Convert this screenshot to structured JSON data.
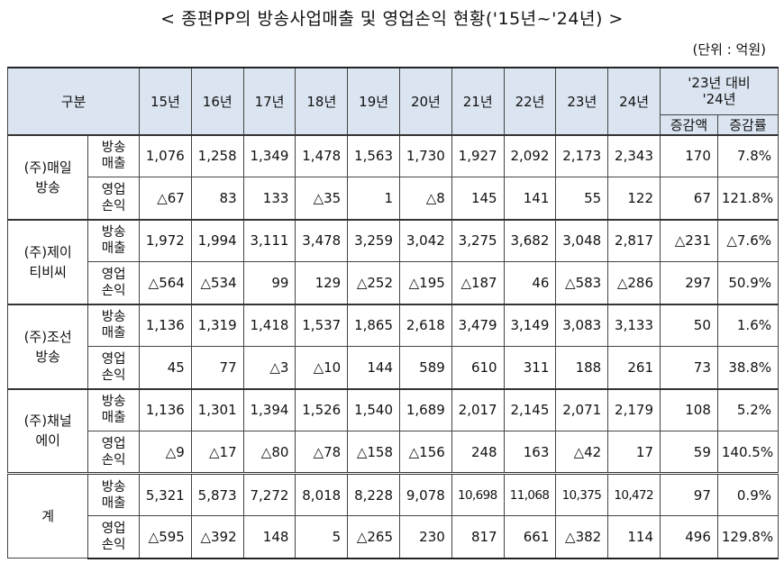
{
  "title": "< 종편PP의 방송사업매출 및 영업손익 현황('15년~'24년) >",
  "unit": "(단위 : 억원)",
  "header": {
    "category": "구분",
    "years": [
      "15년",
      "16년",
      "17년",
      "18년",
      "19년",
      "20년",
      "21년",
      "22년",
      "23년",
      "24년"
    ],
    "compare_line1": "'23년 대비",
    "compare_line2": "'24년",
    "change_amount": "증감액",
    "change_rate": "증감률"
  },
  "rows": [
    {
      "company": "(주)매일 방송",
      "items": [
        {
          "label": "방송 매출",
          "values": [
            "1,076",
            "1,258",
            "1,349",
            "1,478",
            "1,563",
            "1,730",
            "1,927",
            "2,092",
            "2,173",
            "2,343"
          ],
          "amount": "170",
          "rate": "7.8%"
        },
        {
          "label": "영업 손익",
          "values": [
            "△67",
            "83",
            "133",
            "△35",
            "1",
            "△8",
            "145",
            "141",
            "55",
            "122"
          ],
          "amount": "67",
          "rate": "121.8%"
        }
      ]
    },
    {
      "company": "(주)제이 티비씨",
      "items": [
        {
          "label": "방송 매출",
          "values": [
            "1,972",
            "1,994",
            "3,111",
            "3,478",
            "3,259",
            "3,042",
            "3,275",
            "3,682",
            "3,048",
            "2,817"
          ],
          "amount": "△231",
          "rate": "△7.6%"
        },
        {
          "label": "영업 손익",
          "values": [
            "△564",
            "△534",
            "99",
            "129",
            "△252",
            "△195",
            "△187",
            "46",
            "△583",
            "△286"
          ],
          "amount": "297",
          "rate": "50.9%"
        }
      ]
    },
    {
      "company": "(주)조선 방송",
      "items": [
        {
          "label": "방송 매출",
          "values": [
            "1,136",
            "1,319",
            "1,418",
            "1,537",
            "1,865",
            "2,618",
            "3,479",
            "3,149",
            "3,083",
            "3,133"
          ],
          "amount": "50",
          "rate": "1.6%"
        },
        {
          "label": "영업 손익",
          "values": [
            "45",
            "77",
            "△3",
            "△10",
            "144",
            "589",
            "610",
            "311",
            "188",
            "261"
          ],
          "amount": "73",
          "rate": "38.8%"
        }
      ]
    },
    {
      "company": "(주)채널 에이",
      "items": [
        {
          "label": "방송 매출",
          "values": [
            "1,136",
            "1,301",
            "1,394",
            "1,526",
            "1,540",
            "1,689",
            "2,017",
            "2,145",
            "2,071",
            "2,179"
          ],
          "amount": "108",
          "rate": "5.2%"
        },
        {
          "label": "영업 손익",
          "values": [
            "△9",
            "△17",
            "△80",
            "△78",
            "△158",
            "△156",
            "248",
            "163",
            "△42",
            "17"
          ],
          "amount": "59",
          "rate": "140.5%"
        }
      ]
    },
    {
      "company": "계",
      "items": [
        {
          "label": "방송 매출",
          "values": [
            "5,321",
            "5,873",
            "7,272",
            "8,018",
            "8,228",
            "9,078",
            "10,698",
            "11,068",
            "10,375",
            "10,472"
          ],
          "amount": "97",
          "rate": "0.9%"
        },
        {
          "label": "영업 손익",
          "values": [
            "△595",
            "△392",
            "148",
            "5",
            "△265",
            "230",
            "817",
            "661",
            "△382",
            "114"
          ],
          "amount": "496",
          "rate": "129.8%"
        }
      ]
    }
  ]
}
